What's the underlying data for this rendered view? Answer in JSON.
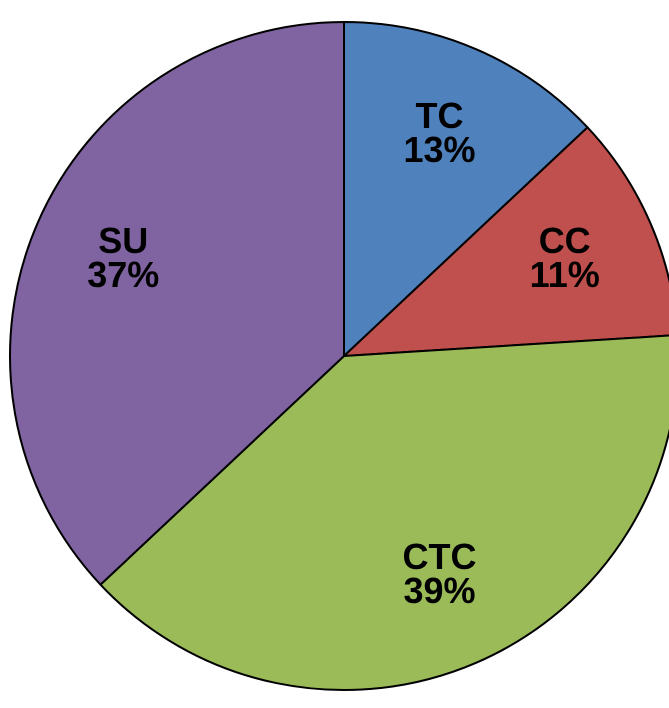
{
  "chart_data": {
    "type": "pie",
    "categories": [
      "TC",
      "CC",
      "CTC",
      "SU"
    ],
    "values": [
      13,
      11,
      39,
      37
    ],
    "value_labels": [
      "13%",
      "11%",
      "39%",
      "37%"
    ],
    "colors": [
      "#4f81bd",
      "#c0504d",
      "#9bbb59",
      "#8064a2"
    ]
  }
}
